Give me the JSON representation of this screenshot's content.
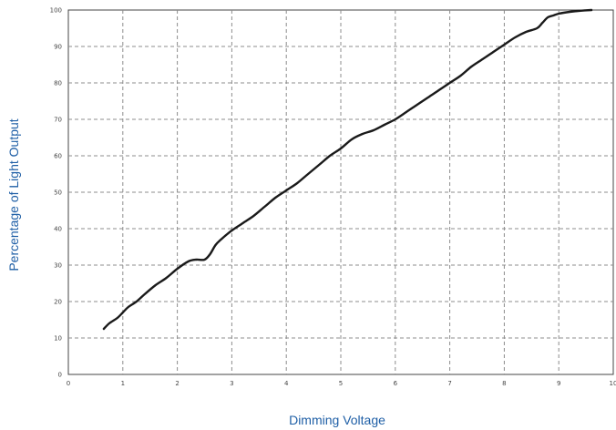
{
  "chart_data": {
    "type": "line",
    "title": "",
    "xlabel": "Dimming Voltage",
    "ylabel": "Percentage of Light Output",
    "xlim": [
      0,
      10
    ],
    "ylim": [
      0,
      100
    ],
    "x_ticks": [
      "0",
      "1",
      "2",
      "3",
      "4",
      "5",
      "6",
      "7",
      "8",
      "9",
      "10"
    ],
    "y_ticks": [
      "0",
      "10",
      "20",
      "30",
      "40",
      "50",
      "60",
      "70",
      "80",
      "90",
      "100"
    ],
    "grid": true,
    "legend": "none",
    "colors": {
      "line": "#1a1a1a",
      "grid": "#8c8c8c",
      "axis_title": "#1f5fa6",
      "tick": "#444444"
    },
    "series": [
      {
        "x": [
          0.65,
          0.75,
          0.9,
          1.0,
          1.1,
          1.25,
          1.4,
          1.6,
          1.8,
          2.0,
          2.2,
          2.35,
          2.5,
          2.6,
          2.7,
          2.8,
          3.0,
          3.2,
          3.4,
          3.6,
          3.8,
          4.0,
          4.2,
          4.4,
          4.6,
          4.8,
          5.0,
          5.2,
          5.4,
          5.6,
          5.8,
          6.0,
          6.2,
          6.4,
          6.6,
          6.8,
          7.0,
          7.2,
          7.4,
          7.6,
          7.8,
          8.0,
          8.2,
          8.4,
          8.6,
          8.7,
          8.8,
          8.9,
          9.0,
          9.2,
          9.4,
          9.6
        ],
        "y": [
          12.5,
          14,
          15.5,
          17,
          18.5,
          20,
          22,
          24.5,
          26.5,
          29,
          31,
          31.5,
          31.5,
          33,
          35.5,
          37,
          39.5,
          41.5,
          43.5,
          46,
          48.5,
          50.5,
          52.5,
          55,
          57.5,
          60,
          62,
          64.5,
          66,
          67,
          68.5,
          70,
          72,
          74,
          76,
          78,
          80,
          82,
          84.5,
          86.5,
          88.5,
          90.5,
          92.5,
          94,
          95,
          96.5,
          98,
          98.5,
          99,
          99.5,
          99.8,
          100
        ]
      }
    ]
  }
}
